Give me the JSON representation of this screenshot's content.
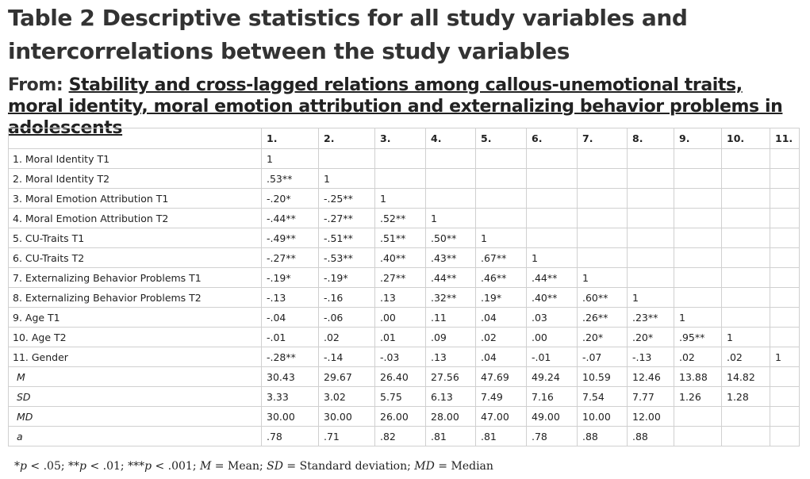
{
  "title": "Table 2 Descriptive statistics for all study variables and intercorrelations between the study variables",
  "from": {
    "label": "From:",
    "article_title": "Stability and cross-lagged relations among callous-unemotional traits, moral identity, moral emotion attribution and externalizing behavior problems in adolescents"
  },
  "table": {
    "headers": [
      "",
      "1.",
      "2.",
      "3.",
      "4.",
      "5.",
      "6.",
      "7.",
      "8.",
      "9.",
      "10.",
      "11."
    ],
    "rows": [
      {
        "label": "1. Moral Identity T1",
        "italic": false,
        "cells": [
          "1",
          "",
          "",
          "",
          "",
          "",
          "",
          "",
          "",
          "",
          ""
        ]
      },
      {
        "label": "2. Moral Identity T2",
        "italic": false,
        "cells": [
          ".53**",
          "1",
          "",
          "",
          "",
          "",
          "",
          "",
          "",
          "",
          ""
        ]
      },
      {
        "label": "3. Moral Emotion Attribution T1",
        "italic": false,
        "cells": [
          "-.20*",
          "-.25**",
          "1",
          "",
          "",
          "",
          "",
          "",
          "",
          "",
          ""
        ]
      },
      {
        "label": "4. Moral Emotion Attribution T2",
        "italic": false,
        "cells": [
          "-.44**",
          "-.27**",
          ".52**",
          "1",
          "",
          "",
          "",
          "",
          "",
          "",
          ""
        ]
      },
      {
        "label": "5. CU-Traits T1",
        "italic": false,
        "cells": [
          "-.49**",
          "-.51**",
          ".51**",
          ".50**",
          "1",
          "",
          "",
          "",
          "",
          "",
          ""
        ]
      },
      {
        "label": "6. CU-Traits T2",
        "italic": false,
        "cells": [
          "-.27**",
          "-.53**",
          ".40**",
          ".43**",
          ".67**",
          "1",
          "",
          "",
          "",
          "",
          ""
        ]
      },
      {
        "label": "7. Externalizing Behavior Problems T1",
        "italic": false,
        "cells": [
          "-.19*",
          "-.19*",
          ".27**",
          ".44**",
          ".46**",
          ".44**",
          "1",
          "",
          "",
          "",
          ""
        ]
      },
      {
        "label": "8. Externalizing Behavior Problems T2",
        "italic": false,
        "cells": [
          "-.13",
          "-.16",
          ".13",
          ".32**",
          ".19*",
          ".40**",
          ".60**",
          "1",
          "",
          "",
          ""
        ]
      },
      {
        "label": "9. Age T1",
        "italic": false,
        "cells": [
          "-.04",
          "-.06",
          ".00",
          ".11",
          ".04",
          ".03",
          ".26**",
          ".23**",
          "1",
          "",
          ""
        ]
      },
      {
        "label": "10. Age T2",
        "italic": false,
        "cells": [
          "-.01",
          ".02",
          ".01",
          ".09",
          ".02",
          ".00",
          ".20*",
          ".20*",
          ".95**",
          "1",
          ""
        ]
      },
      {
        "label": "11. Gender",
        "italic": false,
        "cells": [
          "-.28**",
          "-.14",
          "-.03",
          ".13",
          ".04",
          "-.01",
          "-.07",
          "-.13",
          ".02",
          ".02",
          "1"
        ]
      },
      {
        "label": "M",
        "italic": true,
        "cells": [
          "30.43",
          "29.67",
          "26.40",
          "27.56",
          "47.69",
          "49.24",
          "10.59",
          "12.46",
          "13.88",
          "14.82",
          ""
        ]
      },
      {
        "label": "SD",
        "italic": true,
        "cells": [
          "3.33",
          "3.02",
          "5.75",
          "6.13",
          "7.49",
          "7.16",
          "7.54",
          "7.77",
          "1.26",
          "1.28",
          ""
        ]
      },
      {
        "label": "MD",
        "italic": true,
        "cells": [
          "30.00",
          "30.00",
          "26.00",
          "28.00",
          "47.00",
          "49.00",
          "10.00",
          "12.00",
          "",
          "",
          ""
        ]
      },
      {
        "label": "a",
        "italic": true,
        "cells": [
          ".78",
          ".71",
          ".82",
          ".81",
          ".81",
          ".78",
          ".88",
          ".88",
          "",
          "",
          ""
        ]
      }
    ]
  },
  "footnote": {
    "p": "p",
    "sig1": " < .05; **",
    "sig2": " < .01; ***",
    "sig3": " < .001; ",
    "m_abbr": "M",
    "m_def": " = Mean; ",
    "sd_abbr": "SD",
    "sd_def": " = Standard deviation; ",
    "md_abbr": "MD",
    "md_def": " = Median",
    "star": "*"
  }
}
